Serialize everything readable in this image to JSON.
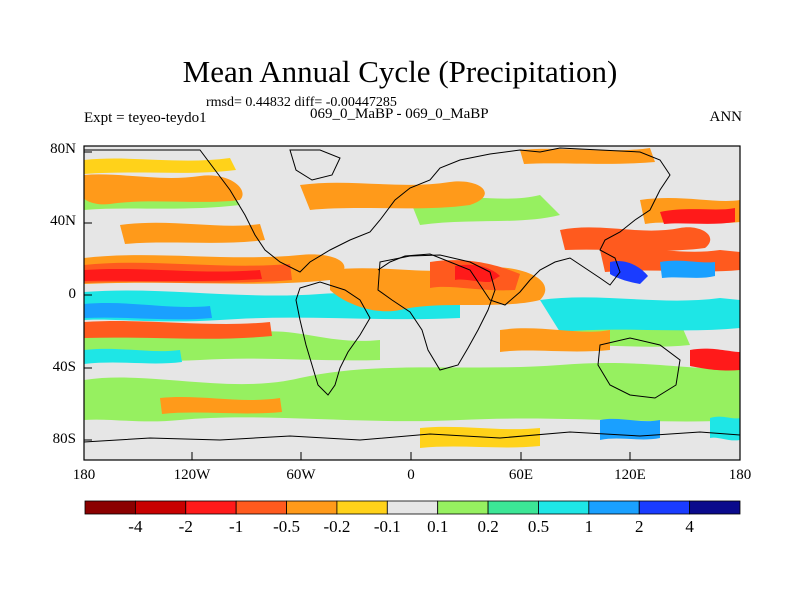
{
  "title": "Mean Annual Cycle (Precipitation)",
  "stats_line": "rmsd= 0.44832 diff= -0.00447285",
  "left_label": "Expt = teyeo-teydo1",
  "center_label": "069_0_MaBP - 069_0_MaBP",
  "right_label": "ANN",
  "map": {
    "lat_ticks": [
      "80N",
      "40N",
      "0",
      "40S",
      "80S"
    ],
    "lon_ticks": [
      "180",
      "120W",
      "60W",
      "0",
      "60E",
      "120E",
      "180"
    ],
    "background_color": "#e6e6e6"
  },
  "colorbar": {
    "labels": [
      "-4",
      "-2",
      "-1",
      "-0.5",
      "-0.2",
      "-0.1",
      "0.1",
      "0.2",
      "0.5",
      "1",
      "2",
      "4"
    ],
    "colors": [
      "#8b0000",
      "#c80000",
      "#ff1a1a",
      "#ff5a1e",
      "#ff9a1a",
      "#ffd21a",
      "#e6e6e6",
      "#96f060",
      "#3ce696",
      "#1ee6e6",
      "#1aa0ff",
      "#1a3cff",
      "#0a0a8c"
    ]
  }
}
